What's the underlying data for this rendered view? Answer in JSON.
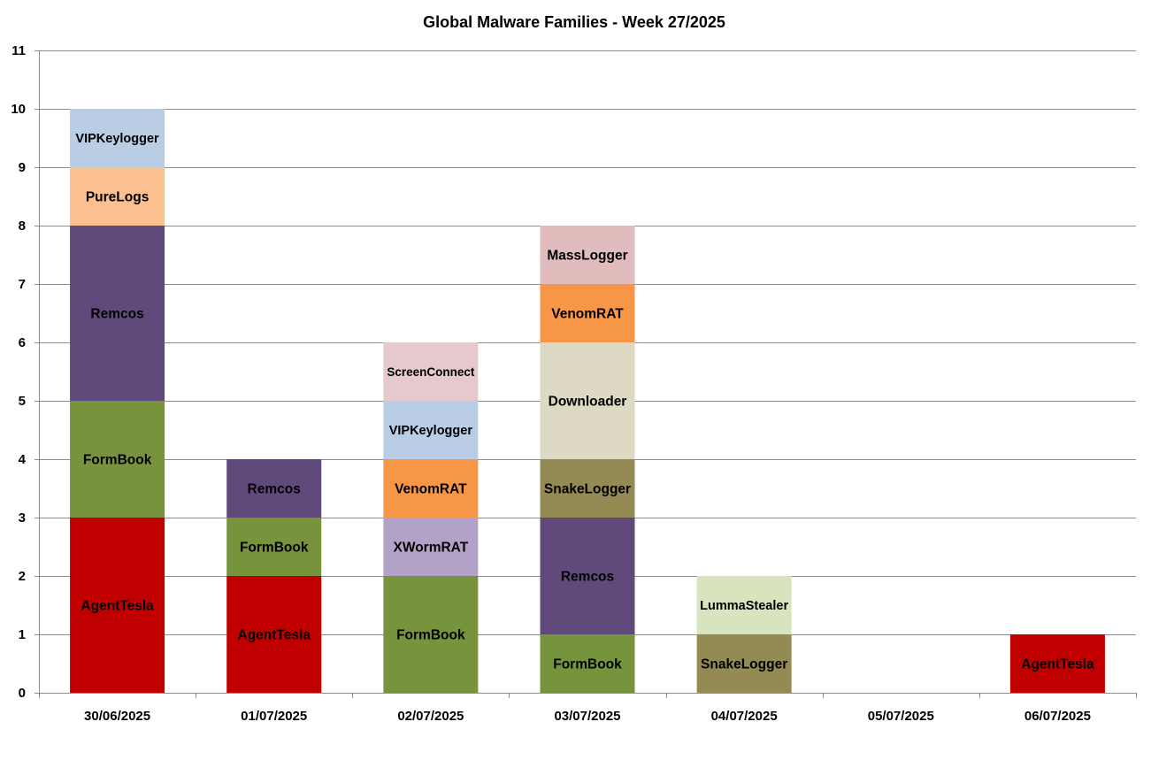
{
  "chart_data": {
    "type": "bar",
    "stacked": true,
    "title": "Global Malware Families - Week 27/2025",
    "xlabel": "",
    "ylabel": "",
    "ylim": [
      0,
      11
    ],
    "yticks": [
      0,
      1,
      2,
      3,
      4,
      5,
      6,
      7,
      8,
      9,
      10,
      11
    ],
    "grid": true,
    "legend": "none",
    "categories": [
      "30/06/2025",
      "01/07/2025",
      "02/07/2025",
      "03/07/2025",
      "04/07/2025",
      "05/07/2025",
      "06/07/2025"
    ],
    "colors": {
      "AgentTesla": "#c00000",
      "FormBook": "#77933c",
      "Remcos": "#604a7b",
      "PureLogs": "#fac090",
      "VIPKeylogger": "#b9cde5",
      "XWormRAT": "#b3a2c7",
      "VenomRAT": "#f79646",
      "ScreenConnect": "#e6c9cc",
      "SnakeLogger": "#948a54",
      "Downloader": "#ddd9c3",
      "MassLogger": "#e0bcbc",
      "LummaStealer": "#d7e4bd"
    },
    "stacks": [
      [
        {
          "name": "AgentTesla",
          "value": 3
        },
        {
          "name": "FormBook",
          "value": 2
        },
        {
          "name": "Remcos",
          "value": 3
        },
        {
          "name": "PureLogs",
          "value": 1
        },
        {
          "name": "VIPKeylogger",
          "value": 1
        }
      ],
      [
        {
          "name": "AgentTesla",
          "value": 2
        },
        {
          "name": "FormBook",
          "value": 1
        },
        {
          "name": "Remcos",
          "value": 1
        }
      ],
      [
        {
          "name": "FormBook",
          "value": 2
        },
        {
          "name": "XWormRAT",
          "value": 1
        },
        {
          "name": "VenomRAT",
          "value": 1
        },
        {
          "name": "VIPKeylogger",
          "value": 1
        },
        {
          "name": "ScreenConnect",
          "value": 1
        }
      ],
      [
        {
          "name": "FormBook",
          "value": 1
        },
        {
          "name": "Remcos",
          "value": 2
        },
        {
          "name": "SnakeLogger",
          "value": 1
        },
        {
          "name": "Downloader",
          "value": 2
        },
        {
          "name": "VenomRAT",
          "value": 1
        },
        {
          "name": "MassLogger",
          "value": 1
        }
      ],
      [
        {
          "name": "SnakeLogger",
          "value": 1
        },
        {
          "name": "LummaStealer",
          "value": 1
        }
      ],
      [],
      [
        {
          "name": "AgentTesla",
          "value": 1
        }
      ]
    ]
  }
}
